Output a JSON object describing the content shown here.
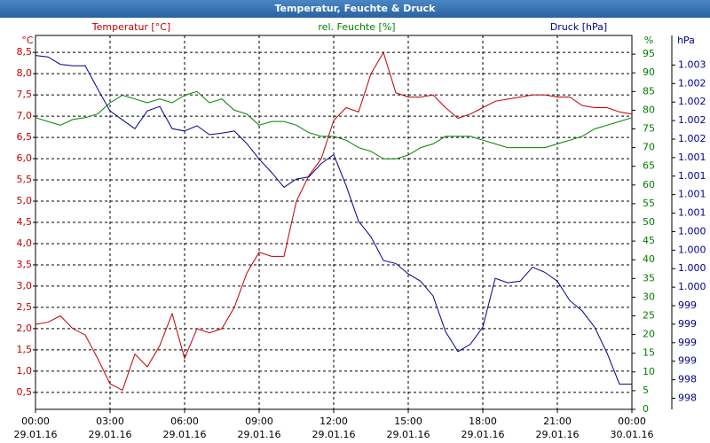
{
  "chart_data": {
    "type": "line",
    "title": "Temperatur, Feuchte & Druck",
    "ylabel": "°C",
    "y2label": "%",
    "y3label": "hPa",
    "grid": true,
    "xlim": [
      0,
      24
    ],
    "xticks": [
      {
        "value": 0,
        "label": "00:00",
        "date": "29.01.16"
      },
      {
        "value": 3,
        "label": "03:00",
        "date": "29.01.16"
      },
      {
        "value": 6,
        "label": "06:00",
        "date": "29.01.16"
      },
      {
        "value": 9,
        "label": "09:00",
        "date": "29.01.16"
      },
      {
        "value": 12,
        "label": "12:00",
        "date": "29.01.16"
      },
      {
        "value": 15,
        "label": "15:00",
        "date": "29.01.16"
      },
      {
        "value": 18,
        "label": "18:00",
        "date": "29.01.16"
      },
      {
        "value": 21,
        "label": "21:00",
        "date": "29.01.16"
      },
      {
        "value": 24,
        "label": "00:00",
        "date": "30.01.16"
      }
    ],
    "ylim": [
      0.1,
      8.9
    ],
    "yticks": [
      {
        "value": 0.5,
        "label": "0,5"
      },
      {
        "value": 1,
        "label": "1,0"
      },
      {
        "value": 1.5,
        "label": "1,5"
      },
      {
        "value": 2,
        "label": "2,0"
      },
      {
        "value": 2.5,
        "label": "2,5"
      },
      {
        "value": 3,
        "label": "3,0"
      },
      {
        "value": 3.5,
        "label": "3,5"
      },
      {
        "value": 4,
        "label": "4,0"
      },
      {
        "value": 4.5,
        "label": "4,5"
      },
      {
        "value": 5,
        "label": "5,0"
      },
      {
        "value": 5.5,
        "label": "5,5"
      },
      {
        "value": 6,
        "label": "6,0"
      },
      {
        "value": 6.5,
        "label": "6,5"
      },
      {
        "value": 7,
        "label": "7,0"
      },
      {
        "value": 7.5,
        "label": "7,5"
      },
      {
        "value": 8,
        "label": "8,0"
      },
      {
        "value": 8.5,
        "label": "8,5"
      }
    ],
    "y2lim": [
      0,
      100
    ],
    "y2ticks": [
      0,
      5,
      10,
      15,
      20,
      25,
      30,
      35,
      40,
      45,
      50,
      55,
      60,
      65,
      70,
      75,
      80,
      85,
      90,
      95
    ],
    "y3lim": [
      997.85,
      1002.9
    ],
    "y3ticks": [
      {
        "value": 998,
        "label": "998"
      },
      {
        "value": 998.25,
        "label": "998"
      },
      {
        "value": 998.5,
        "label": "999"
      },
      {
        "value": 998.75,
        "label": "999"
      },
      {
        "value": 999,
        "label": "999"
      },
      {
        "value": 999.25,
        "label": "999"
      },
      {
        "value": 999.5,
        "label": "1.000"
      },
      {
        "value": 999.75,
        "label": "1.000"
      },
      {
        "value": 1000,
        "label": "1.000"
      },
      {
        "value": 1000.25,
        "label": "1.000"
      },
      {
        "value": 1000.5,
        "label": "1.001"
      },
      {
        "value": 1000.75,
        "label": "1.001"
      },
      {
        "value": 1001,
        "label": "1.001"
      },
      {
        "value": 1001.25,
        "label": "1.001"
      },
      {
        "value": 1001.5,
        "label": "1.002"
      },
      {
        "value": 1001.75,
        "label": "1.002"
      },
      {
        "value": 1002,
        "label": "1.002"
      },
      {
        "value": 1002.25,
        "label": "1.002"
      },
      {
        "value": 1002.5,
        "label": "1.003"
      }
    ],
    "x": [
      0,
      0.5,
      1,
      1.5,
      2,
      2.5,
      3,
      3.5,
      4,
      4.5,
      5,
      5.5,
      6,
      6.5,
      7,
      7.5,
      8,
      8.5,
      9,
      9.5,
      10,
      10.5,
      11,
      11.5,
      12,
      12.5,
      13,
      13.5,
      14,
      14.5,
      15,
      15.5,
      16,
      16.5,
      17,
      17.5,
      18,
      18.5,
      19,
      19.5,
      20,
      20.5,
      21,
      21.5,
      22,
      22.5,
      23,
      23.5,
      24
    ],
    "series": [
      {
        "name": "Temperatur [°C]",
        "color": "#c00000",
        "axis": "y",
        "values": [
          2.1,
          2.15,
          2.3,
          2.0,
          1.85,
          1.3,
          0.7,
          0.55,
          1.4,
          1.1,
          1.6,
          2.35,
          1.3,
          2.0,
          1.9,
          2.0,
          2.5,
          3.3,
          3.8,
          3.7,
          3.7,
          5.0,
          5.6,
          6.0,
          6.9,
          7.2,
          7.1,
          8.0,
          8.5,
          7.55,
          7.45,
          7.45,
          7.5,
          7.2,
          6.95,
          7.05,
          7.2,
          7.35,
          7.4,
          7.45,
          7.5,
          7.5,
          7.45,
          7.45,
          7.25,
          7.2,
          7.2,
          7.1,
          7.05
        ]
      },
      {
        "name": "rel. Feuchte [%]",
        "color": "#008000",
        "axis": "y2",
        "values": [
          78,
          77,
          76,
          77.5,
          78,
          79,
          82,
          84,
          83,
          82,
          83,
          82,
          84,
          85,
          82,
          83,
          80,
          79,
          76,
          77,
          77,
          76,
          74,
          73,
          73,
          72,
          70,
          69,
          67,
          67,
          68,
          70,
          71,
          73,
          73,
          73,
          72,
          71,
          70,
          70,
          70,
          70,
          71,
          72,
          73,
          75,
          76,
          77,
          78
        ]
      },
      {
        "name": "Druck [hPa]",
        "color": "#00008b",
        "axis": "y3",
        "values": [
          1002.63,
          1002.61,
          1002.51,
          1002.49,
          1002.49,
          1002.18,
          1001.88,
          1001.76,
          1001.64,
          1001.88,
          1001.94,
          1001.64,
          1001.61,
          1001.68,
          1001.56,
          1001.58,
          1001.61,
          1001.44,
          1001.23,
          1001.05,
          1000.85,
          1000.96,
          1000.99,
          1001.17,
          1001.29,
          1000.87,
          1000.39,
          1000.18,
          999.86,
          999.82,
          999.68,
          999.58,
          999.38,
          998.9,
          998.63,
          998.73,
          998.96,
          999.62,
          999.56,
          999.58,
          999.77,
          999.7,
          999.58,
          999.32,
          999.18,
          998.96,
          998.61,
          998.19,
          998.19
        ]
      }
    ]
  }
}
